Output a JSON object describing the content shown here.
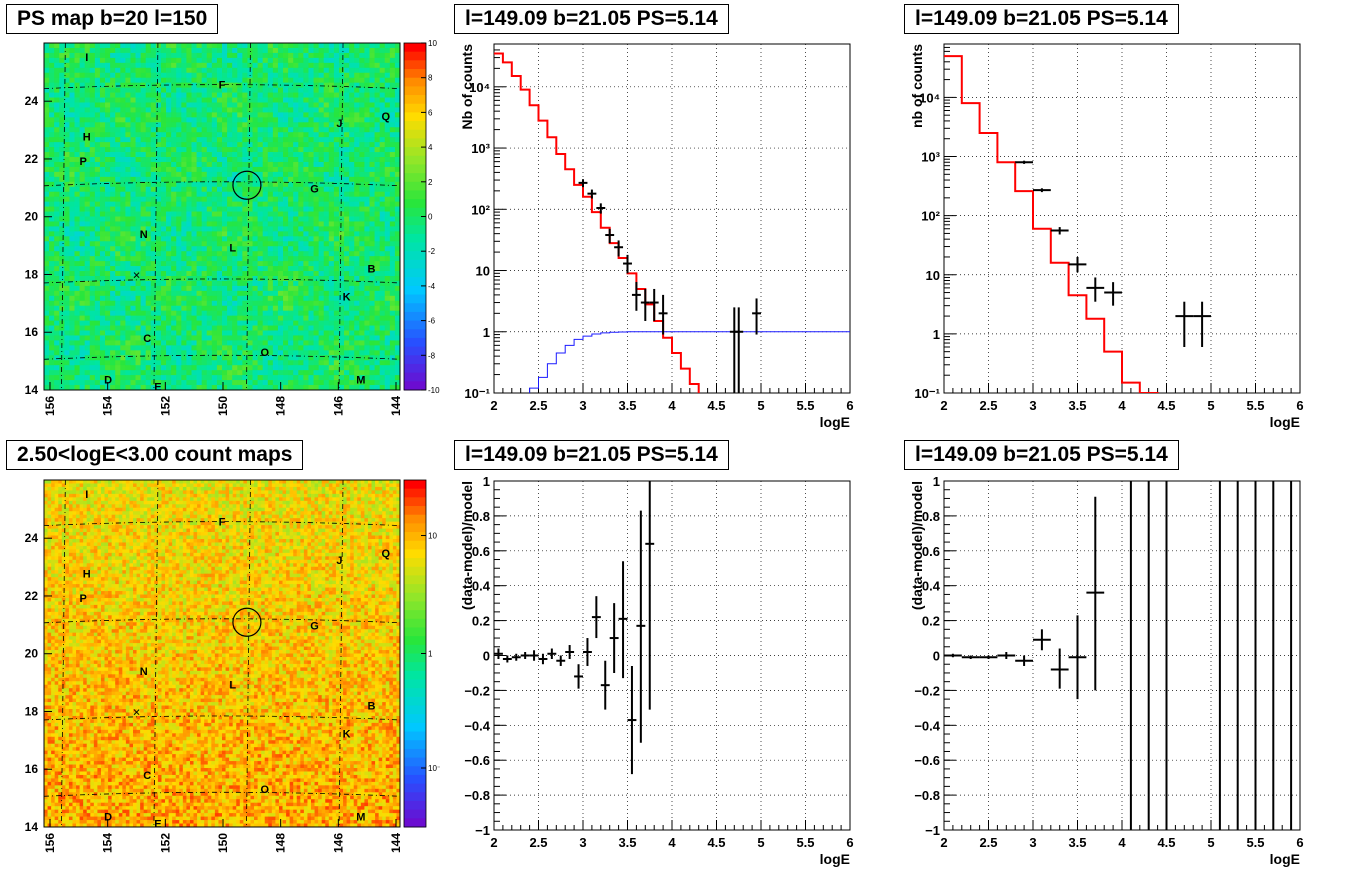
{
  "colors": {
    "hist_red": "#ff0000",
    "model_blue": "#1a1aff",
    "data_black": "#000000",
    "grid": "#000000"
  },
  "maps": [
    {
      "title": "PS map b=20 l=150",
      "xticks": [
        "156",
        "154",
        "152",
        "150",
        "148",
        "146",
        "144"
      ],
      "yticks": [
        "14",
        "16",
        "18",
        "20",
        "22",
        "24"
      ],
      "colorbar": {
        "type": "linear",
        "ticks": [
          "10",
          "8",
          "6",
          "4",
          "2",
          "0",
          "-2",
          "-4",
          "-6",
          "-8",
          "-10"
        ]
      },
      "sources": [
        "I",
        "F",
        "H",
        "J",
        "Q",
        "P",
        "G",
        "N",
        "L",
        "B",
        "K",
        "C",
        "O",
        "D",
        "E",
        "M"
      ]
    },
    {
      "title": "2.50<logE<3.00 count maps",
      "xticks": [
        "156",
        "154",
        "152",
        "150",
        "148",
        "146",
        "144"
      ],
      "yticks": [
        "14",
        "16",
        "18",
        "20",
        "22",
        "24"
      ],
      "colorbar": {
        "type": "log",
        "ticks": [
          "10",
          "1",
          "10⁻¹"
        ]
      },
      "sources": [
        "I",
        "F",
        "H",
        "J",
        "Q",
        "P",
        "G",
        "N",
        "L",
        "B",
        "K",
        "C",
        "O",
        "D",
        "E",
        "M"
      ]
    }
  ],
  "chart_data": [
    {
      "type": "line",
      "title": "l=149.09 b=21.05 PS=5.14",
      "xlabel": "logE",
      "ylabel": "Nb of counts",
      "xlim": [
        2,
        6
      ],
      "ylim": [
        0.1,
        50000
      ],
      "yscale": "log",
      "grid": true,
      "xticks": [
        "2",
        "2.5",
        "3",
        "3.5",
        "4",
        "4.5",
        "5",
        "5.5",
        "6"
      ],
      "yticks": [
        {
          "v": 0.1,
          "label": "10⁻¹"
        },
        {
          "v": 1,
          "label": "1"
        },
        {
          "v": 10,
          "label": "10"
        },
        {
          "v": 100,
          "label": "10²"
        },
        {
          "v": 1000,
          "label": "10³"
        },
        {
          "v": 10000,
          "label": "10⁴"
        }
      ],
      "model_edges": [
        2.0,
        2.1,
        2.2,
        2.3,
        2.4,
        2.5,
        2.6,
        2.7,
        2.8,
        2.9,
        3.0,
        3.1,
        3.2,
        3.3,
        3.4,
        3.5,
        3.6,
        3.7,
        3.8,
        3.9,
        4.0,
        4.1,
        4.2,
        4.3,
        4.4,
        4.5,
        4.6,
        4.7,
        4.8,
        4.9,
        5.0,
        5.1,
        5.2,
        5.3,
        5.4,
        5.5,
        5.6,
        5.7,
        5.8,
        5.9,
        6.0
      ],
      "model": [
        35000,
        25000,
        15000,
        9000,
        5000,
        2800,
        1500,
        800,
        450,
        250,
        160,
        90,
        50,
        28,
        16,
        9,
        5,
        2.8,
        1.5,
        0.8,
        0.45,
        0.25,
        0.14,
        0.08,
        0.08,
        0.08,
        0.08,
        0.08,
        0.08,
        0.08,
        0.08,
        0.08,
        0.08,
        0.08,
        0.08,
        0.08,
        0.08,
        0.08,
        0.08,
        0.08
      ],
      "blue": [
        0.05,
        0.05,
        0.05,
        0.08,
        0.12,
        0.18,
        0.3,
        0.45,
        0.6,
        0.75,
        0.85,
        0.92,
        0.96,
        0.98,
        0.99,
        1,
        1,
        1,
        1,
        1,
        1,
        1,
        1,
        1,
        1,
        1,
        1,
        1,
        1,
        1,
        1,
        1,
        1,
        1,
        1,
        1,
        1,
        1,
        1,
        1
      ],
      "points": [
        {
          "x": 3.0,
          "y": 270,
          "lo": 230,
          "hi": 310,
          "xerr": 0.05
        },
        {
          "x": 3.1,
          "y": 180,
          "lo": 150,
          "hi": 210,
          "xerr": 0.05
        },
        {
          "x": 3.2,
          "y": 105,
          "lo": 85,
          "hi": 125,
          "xerr": 0.05
        },
        {
          "x": 3.3,
          "y": 38,
          "lo": 28,
          "hi": 48,
          "xerr": 0.05
        },
        {
          "x": 3.4,
          "y": 24,
          "lo": 17,
          "hi": 31,
          "xerr": 0.05
        },
        {
          "x": 3.5,
          "y": 13,
          "lo": 9,
          "hi": 18,
          "xerr": 0.05
        },
        {
          "x": 3.6,
          "y": 4,
          "lo": 2.2,
          "hi": 6.5,
          "xerr": 0.05
        },
        {
          "x": 3.7,
          "y": 3,
          "lo": 1.5,
          "hi": 5,
          "xerr": 0.05
        },
        {
          "x": 3.8,
          "y": 3,
          "lo": 1.5,
          "hi": 5,
          "xerr": 0.05
        },
        {
          "x": 3.9,
          "y": 2,
          "lo": 0.9,
          "hi": 4,
          "xerr": 0.05
        },
        {
          "x": 4.7,
          "y": 1,
          "lo": 0.1,
          "hi": 2.5,
          "xerr": 0.05
        },
        {
          "x": 4.75,
          "y": 1,
          "lo": 0.1,
          "hi": 2.5,
          "xerr": 0.05
        },
        {
          "x": 4.95,
          "y": 2,
          "lo": 0.9,
          "hi": 3.5,
          "xerr": 0.05
        }
      ]
    },
    {
      "type": "line",
      "title": "l=149.09 b=21.05 PS=5.14",
      "xlabel": "logE",
      "ylabel": "nb of counts",
      "xlim": [
        2,
        6
      ],
      "ylim": [
        0.1,
        80000
      ],
      "yscale": "log",
      "grid": true,
      "xticks": [
        "2",
        "2.5",
        "3",
        "3.5",
        "4",
        "4.5",
        "5",
        "5.5",
        "6"
      ],
      "yticks": [
        {
          "v": 0.1,
          "label": "10⁻¹"
        },
        {
          "v": 1,
          "label": "1"
        },
        {
          "v": 10,
          "label": "10"
        },
        {
          "v": 100,
          "label": "10²"
        },
        {
          "v": 1000,
          "label": "10³"
        },
        {
          "v": 10000,
          "label": "10⁴"
        }
      ],
      "model_edges": [
        2.0,
        2.2,
        2.4,
        2.6,
        2.8,
        3.0,
        3.2,
        3.4,
        3.6,
        3.8,
        4.0,
        4.2,
        4.4,
        4.6,
        4.8,
        5.0,
        5.2,
        5.4,
        5.6,
        5.8,
        6.0
      ],
      "model": [
        50000,
        8000,
        2500,
        800,
        260,
        60,
        16,
        4.5,
        1.8,
        0.5,
        0.15,
        0.1,
        0.08,
        0.08,
        0.08,
        0.08,
        0.08,
        0.08,
        0.08,
        0.08
      ],
      "points": [
        {
          "x": 2.9,
          "y": 800,
          "lo": 750,
          "hi": 850,
          "xerr": 0.1
        },
        {
          "x": 3.1,
          "y": 270,
          "lo": 250,
          "hi": 290,
          "xerr": 0.1
        },
        {
          "x": 3.3,
          "y": 56,
          "lo": 48,
          "hi": 64,
          "xerr": 0.1
        },
        {
          "x": 3.5,
          "y": 15,
          "lo": 11,
          "hi": 20,
          "xerr": 0.1
        },
        {
          "x": 3.7,
          "y": 6,
          "lo": 3.5,
          "hi": 9,
          "xerr": 0.1
        },
        {
          "x": 3.9,
          "y": 5,
          "lo": 3,
          "hi": 7.5,
          "xerr": 0.1
        },
        {
          "x": 4.7,
          "y": 2,
          "lo": 0.6,
          "hi": 3.5,
          "xerr": 0.1
        },
        {
          "x": 4.9,
          "y": 2,
          "lo": 0.6,
          "hi": 3.5,
          "xerr": 0.1
        }
      ]
    },
    {
      "type": "scatter",
      "title": "l=149.09 b=21.05 PS=5.14",
      "xlabel": "logE",
      "ylabel": "(data-model)/model",
      "xlim": [
        2,
        6
      ],
      "ylim": [
        -1,
        1
      ],
      "grid": true,
      "xticks": [
        "2",
        "2.5",
        "3",
        "3.5",
        "4",
        "4.5",
        "5",
        "5.5",
        "6"
      ],
      "yticks": [
        "-1",
        "-0.8",
        "-0.6",
        "-0.4",
        "-0.2",
        "0",
        "0.2",
        "0.4",
        "0.6",
        "0.8",
        "1"
      ],
      "points": [
        {
          "x": 2.05,
          "y": 0.01,
          "lo": -0.02,
          "hi": 0.04,
          "xerr": 0.05
        },
        {
          "x": 2.15,
          "y": -0.02,
          "lo": -0.04,
          "hi": 0.0,
          "xerr": 0.05
        },
        {
          "x": 2.25,
          "y": -0.01,
          "lo": -0.03,
          "hi": 0.01,
          "xerr": 0.05
        },
        {
          "x": 2.35,
          "y": 0.0,
          "lo": -0.02,
          "hi": 0.02,
          "xerr": 0.05
        },
        {
          "x": 2.45,
          "y": 0.0,
          "lo": -0.03,
          "hi": 0.03,
          "xerr": 0.05
        },
        {
          "x": 2.55,
          "y": -0.02,
          "lo": -0.05,
          "hi": 0.01,
          "xerr": 0.05
        },
        {
          "x": 2.65,
          "y": 0.01,
          "lo": -0.02,
          "hi": 0.04,
          "xerr": 0.05
        },
        {
          "x": 2.75,
          "y": -0.03,
          "lo": -0.06,
          "hi": 0.0,
          "xerr": 0.05
        },
        {
          "x": 2.85,
          "y": 0.02,
          "lo": -0.02,
          "hi": 0.06,
          "xerr": 0.05
        },
        {
          "x": 2.95,
          "y": -0.12,
          "lo": -0.19,
          "hi": -0.05,
          "xerr": 0.05
        },
        {
          "x": 3.05,
          "y": 0.02,
          "lo": -0.06,
          "hi": 0.1,
          "xerr": 0.05
        },
        {
          "x": 3.15,
          "y": 0.22,
          "lo": 0.1,
          "hi": 0.34,
          "xerr": 0.05
        },
        {
          "x": 3.25,
          "y": -0.17,
          "lo": -0.31,
          "hi": -0.03,
          "xerr": 0.05
        },
        {
          "x": 3.35,
          "y": 0.1,
          "lo": -0.1,
          "hi": 0.3,
          "xerr": 0.05
        },
        {
          "x": 3.45,
          "y": 0.21,
          "lo": -0.13,
          "hi": 0.54,
          "xerr": 0.05
        },
        {
          "x": 3.55,
          "y": -0.37,
          "lo": -0.68,
          "hi": -0.06,
          "xerr": 0.05
        },
        {
          "x": 3.65,
          "y": 0.17,
          "lo": -0.5,
          "hi": 0.83,
          "xerr": 0.05
        },
        {
          "x": 3.75,
          "y": 0.64,
          "lo": -0.31,
          "hi": 1.0,
          "xerr": 0.05
        }
      ]
    },
    {
      "type": "scatter",
      "title": "l=149.09 b=21.05 PS=5.14",
      "xlabel": "logE",
      "ylabel": "(data-model)/model",
      "xlim": [
        2,
        6
      ],
      "ylim": [
        -1,
        1
      ],
      "grid": true,
      "xticks": [
        "2",
        "2.5",
        "3",
        "3.5",
        "4",
        "4.5",
        "5",
        "5.5",
        "6"
      ],
      "yticks": [
        "-1",
        "-0.8",
        "-0.6",
        "-0.4",
        "-0.2",
        "0",
        "0.2",
        "0.4",
        "0.6",
        "0.8",
        "1"
      ],
      "points": [
        {
          "x": 2.1,
          "y": 0.0,
          "lo": -0.01,
          "hi": 0.01,
          "xerr": 0.1
        },
        {
          "x": 2.3,
          "y": -0.01,
          "lo": -0.02,
          "hi": 0.0,
          "xerr": 0.1
        },
        {
          "x": 2.5,
          "y": -0.01,
          "lo": -0.02,
          "hi": 0.0,
          "xerr": 0.1
        },
        {
          "x": 2.7,
          "y": 0.0,
          "lo": -0.02,
          "hi": 0.02,
          "xerr": 0.1
        },
        {
          "x": 2.9,
          "y": -0.03,
          "lo": -0.06,
          "hi": 0.0,
          "xerr": 0.1
        },
        {
          "x": 3.1,
          "y": 0.09,
          "lo": 0.03,
          "hi": 0.15,
          "xerr": 0.1
        },
        {
          "x": 3.3,
          "y": -0.08,
          "lo": -0.19,
          "hi": 0.04,
          "xerr": 0.1
        },
        {
          "x": 3.5,
          "y": -0.01,
          "lo": -0.25,
          "hi": 0.23,
          "xerr": 0.1
        },
        {
          "x": 3.7,
          "y": 0.36,
          "lo": -0.2,
          "hi": 0.91,
          "xerr": 0.1
        }
      ],
      "vlines": [
        4.1,
        4.3,
        4.5,
        5.1,
        5.3,
        5.5,
        5.7,
        5.9
      ]
    }
  ]
}
